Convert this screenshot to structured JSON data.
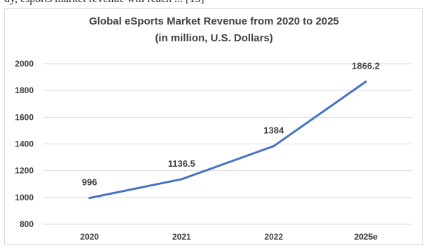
{
  "caption_fragment": "dy, esports market revenue will reach ... [15]",
  "chart_data": {
    "type": "line",
    "title": "Global eSports Market Revenue from 2020 to 2025",
    "subtitle": "(in million, U.S. Dollars)",
    "categories": [
      "2020",
      "2021",
      "2022",
      "2025e"
    ],
    "series": [
      {
        "values": [
          996,
          1136.5,
          1384,
          1866.2
        ],
        "data_labels": [
          "996",
          "1136.5",
          "1384",
          "1866.2"
        ]
      }
    ],
    "ylim": [
      800,
      2000
    ],
    "yticks": [
      800,
      1000,
      1200,
      1400,
      1600,
      1800,
      2000
    ],
    "grid": true,
    "legend": "none",
    "colors": {
      "line": "#4472c4",
      "grid": "#d9d9d9",
      "text": "#404040"
    }
  }
}
